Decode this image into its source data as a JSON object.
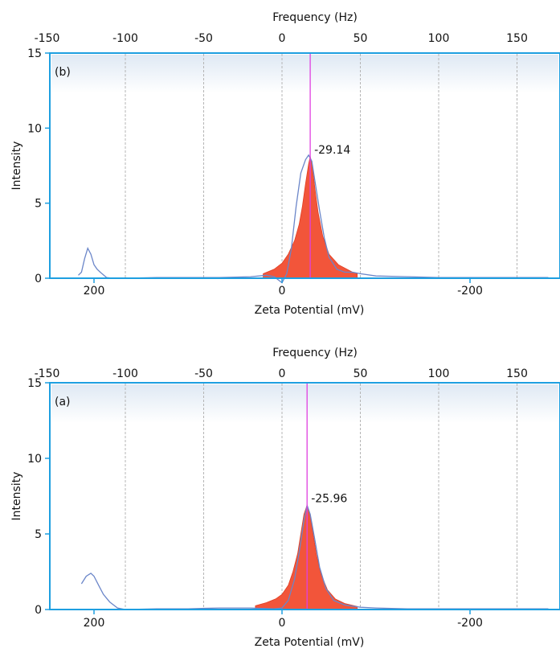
{
  "chart_data": [
    {
      "type": "area",
      "panel_label": "(b)",
      "top_axis": {
        "label": "Frequency (Hz)",
        "ticks": [
          -150,
          -100,
          -50,
          0,
          50,
          100,
          150
        ],
        "tick_labels": [
          "-150",
          "-100",
          "-50",
          "0",
          "50",
          "100",
          "150"
        ]
      },
      "bottom_axis": {
        "label": "Zeta Potential (mV)",
        "tick_labels": [
          "200",
          "0",
          "-200"
        ]
      },
      "y_axis": {
        "label": "Intensity",
        "ylim": [
          0,
          15
        ],
        "ticks": [
          0,
          5,
          10,
          15
        ],
        "tick_labels": [
          "0",
          "5",
          "10",
          "15"
        ]
      },
      "grid": "vertical dashed at frequency ticks",
      "peak_marker": {
        "frequency": 18,
        "label": "-29.14"
      },
      "series": [
        {
          "style": "filled peak",
          "color": "#f2553a",
          "x": [
            -12,
            -5,
            0,
            4,
            8,
            11,
            13,
            15,
            17,
            18,
            19,
            21,
            23,
            26,
            30,
            36,
            45,
            48
          ],
          "y": [
            0.3,
            0.6,
            1.0,
            1.6,
            2.5,
            3.6,
            4.8,
            6.3,
            7.6,
            8.1,
            7.7,
            6.0,
            4.4,
            2.8,
            1.6,
            0.9,
            0.4,
            0.3
          ]
        },
        {
          "style": "line",
          "color": "#6b86c9",
          "x": [
            -130,
            -128,
            -126,
            -124,
            -122,
            -120,
            -118,
            -116,
            -112,
            -108,
            -100,
            -80,
            -60,
            -40,
            -20,
            -10,
            -5,
            0,
            3,
            6,
            9,
            12,
            15,
            17,
            19,
            21,
            24,
            27,
            30,
            35,
            40,
            45,
            50,
            60,
            80,
            100,
            120,
            140,
            170
          ],
          "y": [
            0.2,
            0.4,
            1.3,
            2.0,
            1.6,
            0.9,
            0.6,
            0.4,
            0.05,
            0.0,
            0.0,
            0.05,
            0.05,
            0.05,
            0.1,
            0.2,
            0.1,
            -0.3,
            0.3,
            2.0,
            4.8,
            7.0,
            7.9,
            8.2,
            7.8,
            6.5,
            4.5,
            2.7,
            1.4,
            0.6,
            0.4,
            0.4,
            0.3,
            0.15,
            0.1,
            0.05,
            0.05,
            0.05,
            0.05
          ]
        }
      ]
    },
    {
      "type": "area",
      "panel_label": "(a)",
      "top_axis": {
        "label": "Frequency (Hz)",
        "ticks": [
          -150,
          -100,
          -50,
          0,
          50,
          100,
          150
        ],
        "tick_labels": [
          "-150",
          "-100",
          "-50",
          "0",
          "50",
          "100",
          "150"
        ]
      },
      "bottom_axis": {
        "label": "Zeta Potential (mV)",
        "tick_labels": [
          "200",
          "0",
          "-200"
        ]
      },
      "y_axis": {
        "label": "Intensity",
        "ylim": [
          0,
          15
        ],
        "ticks": [
          0,
          5,
          10,
          15
        ],
        "tick_labels": [
          "0",
          "5",
          "10",
          "15"
        ]
      },
      "grid": "vertical dashed at frequency ticks",
      "peak_marker": {
        "frequency": 16,
        "label": "-25.96"
      },
      "series": [
        {
          "style": "filled peak",
          "color": "#f2553a",
          "x": [
            -17,
            -10,
            -4,
            0,
            4,
            7,
            10,
            12,
            14,
            16,
            18,
            20,
            22,
            25,
            29,
            34,
            40,
            48
          ],
          "y": [
            0.25,
            0.45,
            0.7,
            1.0,
            1.6,
            2.5,
            3.7,
            5.0,
            6.3,
            6.9,
            6.2,
            4.9,
            3.6,
            2.3,
            1.3,
            0.7,
            0.4,
            0.2
          ]
        },
        {
          "style": "line",
          "color": "#6b86c9",
          "x": [
            -128,
            -125,
            -122,
            -120,
            -117,
            -114,
            -110,
            -105,
            -100,
            -80,
            -60,
            -40,
            -20,
            -5,
            0,
            4,
            8,
            11,
            14,
            16,
            18,
            21,
            24,
            28,
            33,
            40,
            50,
            60,
            80,
            100,
            120,
            150,
            170
          ],
          "y": [
            1.7,
            2.2,
            2.4,
            2.2,
            1.6,
            1.0,
            0.5,
            0.1,
            0.0,
            0.05,
            0.05,
            0.1,
            0.1,
            0.05,
            0.1,
            0.6,
            2.0,
            3.8,
            5.9,
            6.9,
            6.3,
            4.6,
            2.8,
            1.4,
            0.6,
            0.3,
            0.15,
            0.1,
            0.05,
            0.05,
            0.05,
            0.05,
            0.05
          ]
        }
      ]
    }
  ]
}
